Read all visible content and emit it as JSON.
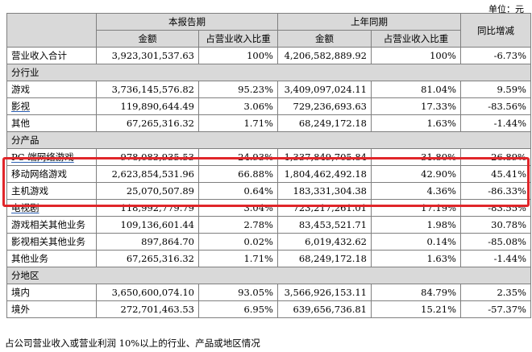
{
  "unit_label": "单位：元",
  "header": {
    "current_period": "本报告期",
    "prior_period": "上年同期",
    "yoy": "同比增减",
    "amount": "金额",
    "share": "占营业收入比重"
  },
  "total": {
    "label": "营业收入合计",
    "cur_amount": "3,923,301,537.63",
    "cur_share": "100%",
    "prev_amount": "4,206,582,889.92",
    "prev_share": "100%",
    "yoy": "-6.73%"
  },
  "by_industry": {
    "title": "分行业",
    "rows": [
      {
        "label": "游戏",
        "linked": false,
        "cur_amount": "3,736,145,576.82",
        "cur_share": "95.23%",
        "prev_amount": "3,409,097,024.11",
        "prev_share": "81.04%",
        "yoy": "9.59%"
      },
      {
        "label": "影视",
        "linked": true,
        "cur_amount": "119,890,644.49",
        "cur_share": "3.06%",
        "prev_amount": "729,236,693.63",
        "prev_share": "17.33%",
        "yoy": "-83.56%"
      },
      {
        "label": "其他",
        "linked": false,
        "cur_amount": "67,265,316.32",
        "cur_share": "1.71%",
        "prev_amount": "68,249,172.18",
        "prev_share": "1.63%",
        "yoy": "-1.44%"
      }
    ]
  },
  "by_product": {
    "title": "分产品",
    "rows": [
      {
        "label": "PC 端网络游戏",
        "linked": true,
        "cur_amount": "978,083,935.53",
        "cur_share": "24.93%",
        "prev_amount": "1,337,849,705.84",
        "prev_share": "31.80%",
        "yoy": "-26.89%"
      },
      {
        "label": "移动网络游戏",
        "linked": false,
        "cur_amount": "2,623,854,531.96",
        "cur_share": "66.88%",
        "prev_amount": "1,804,462,492.18",
        "prev_share": "42.90%",
        "yoy": "45.41%"
      },
      {
        "label": "主机游戏",
        "linked": false,
        "cur_amount": "25,070,507.89",
        "cur_share": "0.64%",
        "prev_amount": "183,331,304.38",
        "prev_share": "4.36%",
        "yoy": "-86.33%"
      },
      {
        "label": "电视剧",
        "linked": true,
        "cur_amount": "118,992,779.79",
        "cur_share": "3.04%",
        "prev_amount": "723,217,261.01",
        "prev_share": "17.19%",
        "yoy": "-83.55%"
      },
      {
        "label": "游戏相关其他业务",
        "linked": false,
        "cur_amount": "109,136,601.44",
        "cur_share": "2.78%",
        "prev_amount": "83,453,521.71",
        "prev_share": "1.98%",
        "yoy": "30.78%"
      },
      {
        "label": "影视相关其他业务",
        "linked": false,
        "cur_amount": "897,864.70",
        "cur_share": "0.02%",
        "prev_amount": "6,019,432.62",
        "prev_share": "0.14%",
        "yoy": "-85.08%"
      },
      {
        "label": "其他业务",
        "linked": false,
        "cur_amount": "67,265,316.32",
        "cur_share": "1.71%",
        "prev_amount": "68,249,172.18",
        "prev_share": "1.63%",
        "yoy": "-1.44%"
      }
    ]
  },
  "by_region": {
    "title": "分地区",
    "rows": [
      {
        "label": "境内",
        "linked": false,
        "cur_amount": "3,650,600,074.10",
        "cur_share": "93.05%",
        "prev_amount": "3,566,926,153.11",
        "prev_share": "84.79%",
        "yoy": "2.35%"
      },
      {
        "label": "境外",
        "linked": false,
        "cur_amount": "272,701,463.53",
        "cur_share": "6.95%",
        "prev_amount": "639,656,736.81",
        "prev_share": "15.21%",
        "yoy": "-57.37%"
      }
    ]
  },
  "caption": "占公司营业收入或营业利润 10%以上的行业、产品或地区情况",
  "accent": {
    "highlight_border": "#e0262a",
    "header_bg": "#d9d9d9",
    "link_underline": "#2b5fb4"
  }
}
